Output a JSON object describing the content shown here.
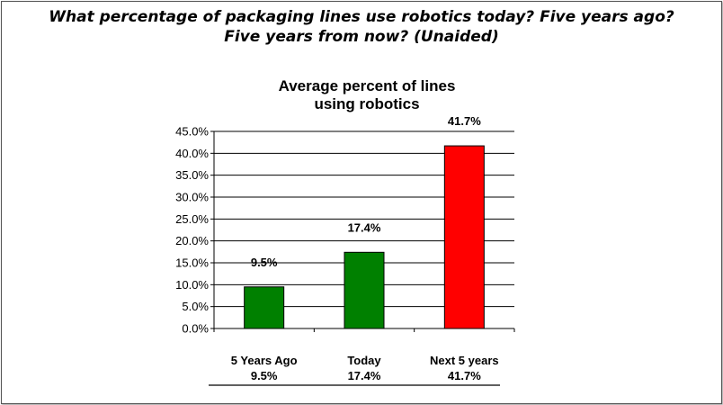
{
  "question": {
    "line1": "What percentage of packaging lines use robotics today?  Five years ago?",
    "line2": "Five years from now? (Unaided)"
  },
  "chart_data": {
    "type": "bar",
    "title_lines": [
      "Average percent of lines",
      "using robotics"
    ],
    "categories": [
      "5 Years Ago",
      "Today",
      "Next 5 years"
    ],
    "values": [
      9.5,
      17.4,
      41.7
    ],
    "value_labels": [
      "9.5%",
      "17.4%",
      "41.7%"
    ],
    "bar_colors": [
      "#008000",
      "#008000",
      "#ff0000"
    ],
    "ylim": [
      0,
      45
    ],
    "yticks": [
      "0.0%",
      "5.0%",
      "10.0%",
      "15.0%",
      "20.0%",
      "25.0%",
      "30.0%",
      "35.0%",
      "40.0%",
      "45.0%"
    ],
    "grid": true,
    "legend": "none",
    "data_table": {
      "categories": [
        "5 Years Ago",
        "Today",
        "Next 5 years"
      ],
      "values": [
        "9.5%",
        "17.4%",
        "41.7%"
      ]
    }
  }
}
